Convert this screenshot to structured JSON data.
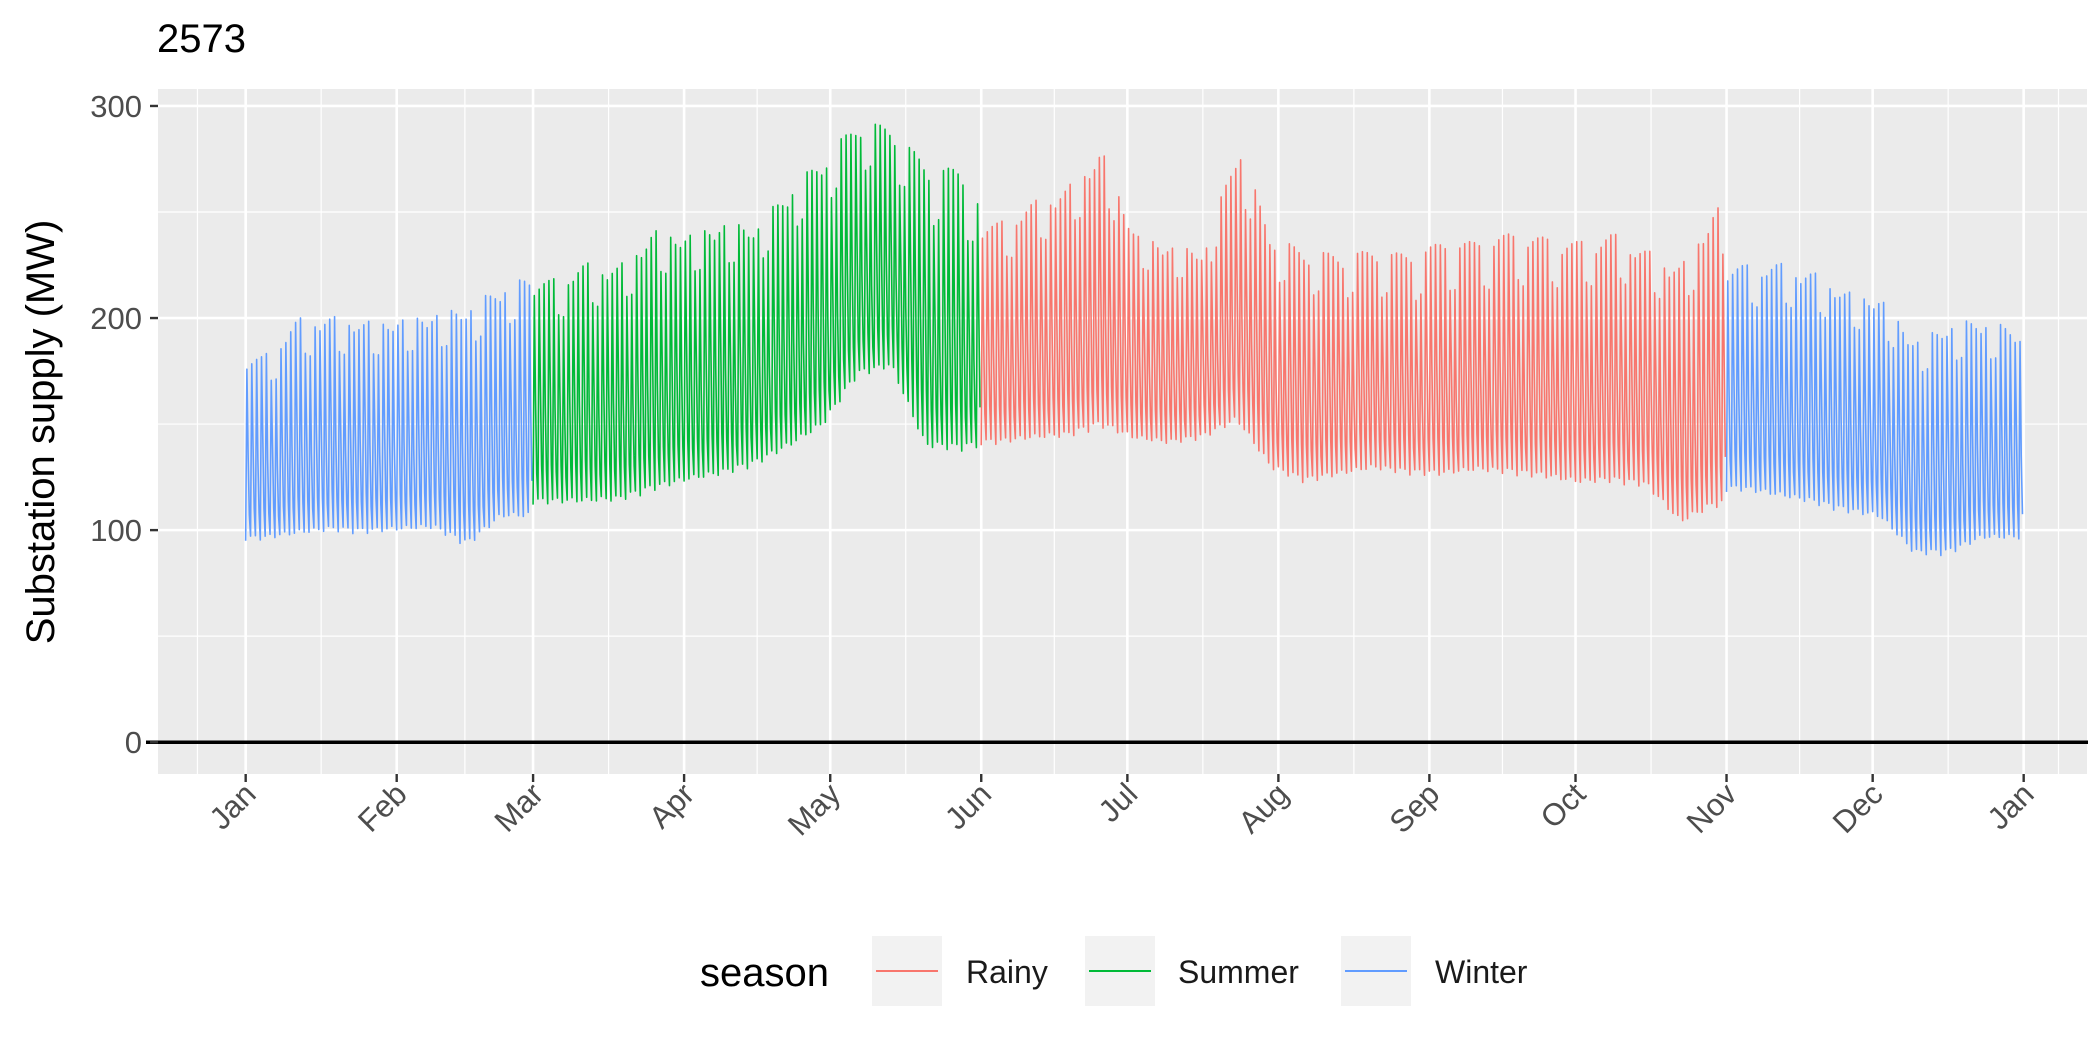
{
  "chart_data": {
    "type": "line",
    "title": "2573",
    "xlabel": "",
    "ylabel": "Substation supply (MW)",
    "ylim": [
      -15,
      308
    ],
    "yticks": [
      0,
      100,
      200,
      300
    ],
    "xlim": [
      "2022-12-14",
      "2024-01-14"
    ],
    "xticks": [
      {
        "date": "2023-01-01",
        "label": "Jan"
      },
      {
        "date": "2023-02-01",
        "label": "Feb"
      },
      {
        "date": "2023-03-01",
        "label": "Mar"
      },
      {
        "date": "2023-04-01",
        "label": "Apr"
      },
      {
        "date": "2023-05-01",
        "label": "May"
      },
      {
        "date": "2023-06-01",
        "label": "Jun"
      },
      {
        "date": "2023-07-01",
        "label": "Jul"
      },
      {
        "date": "2023-08-01",
        "label": "Aug"
      },
      {
        "date": "2023-09-01",
        "label": "Sep"
      },
      {
        "date": "2023-10-01",
        "label": "Oct"
      },
      {
        "date": "2023-11-01",
        "label": "Nov"
      },
      {
        "date": "2023-12-01",
        "label": "Dec"
      },
      {
        "date": "2024-01-01",
        "label": "Jan"
      }
    ],
    "hline": 0,
    "grid": true,
    "legend_title": "season",
    "legend_position": "bottom",
    "series": [
      {
        "name": "Rainy",
        "color": "#F8766D",
        "start": "2023-06-01",
        "end": "2023-10-31",
        "weekly_peak_min": [
          {
            "week_of": "2023-06-01",
            "peak": 245,
            "min": 140
          },
          {
            "week_of": "2023-06-08",
            "peak": 255,
            "min": 142
          },
          {
            "week_of": "2023-06-15",
            "peak": 262,
            "min": 143
          },
          {
            "week_of": "2023-06-22",
            "peak": 280,
            "min": 148
          },
          {
            "week_of": "2023-06-29",
            "peak": 240,
            "min": 142
          },
          {
            "week_of": "2023-07-06",
            "peak": 235,
            "min": 140
          },
          {
            "week_of": "2023-07-13",
            "peak": 232,
            "min": 143
          },
          {
            "week_of": "2023-07-20",
            "peak": 283,
            "min": 150
          },
          {
            "week_of": "2023-07-27",
            "peak": 238,
            "min": 128
          },
          {
            "week_of": "2023-08-03",
            "peak": 232,
            "min": 122
          },
          {
            "week_of": "2023-08-10",
            "peak": 230,
            "min": 125
          },
          {
            "week_of": "2023-08-17",
            "peak": 232,
            "min": 128
          },
          {
            "week_of": "2023-08-24",
            "peak": 230,
            "min": 126
          },
          {
            "week_of": "2023-08-31",
            "peak": 236,
            "min": 125
          },
          {
            "week_of": "2023-09-07",
            "peak": 236,
            "min": 127
          },
          {
            "week_of": "2023-09-14",
            "peak": 240,
            "min": 126
          },
          {
            "week_of": "2023-09-21",
            "peak": 238,
            "min": 124
          },
          {
            "week_of": "2023-09-28",
            "peak": 236,
            "min": 121
          },
          {
            "week_of": "2023-10-05",
            "peak": 240,
            "min": 122
          },
          {
            "week_of": "2023-10-12",
            "peak": 232,
            "min": 120
          },
          {
            "week_of": "2023-10-19",
            "peak": 225,
            "min": 102
          },
          {
            "week_of": "2023-10-26",
            "peak": 253,
            "min": 110
          }
        ]
      },
      {
        "name": "Summer",
        "color": "#00BA38",
        "start": "2023-03-01",
        "end": "2023-05-31",
        "weekly_peak_min": [
          {
            "week_of": "2023-03-01",
            "peak": 218,
            "min": 112
          },
          {
            "week_of": "2023-03-08",
            "peak": 226,
            "min": 112
          },
          {
            "week_of": "2023-03-15",
            "peak": 225,
            "min": 113
          },
          {
            "week_of": "2023-03-22",
            "peak": 242,
            "min": 118
          },
          {
            "week_of": "2023-03-29",
            "peak": 240,
            "min": 122
          },
          {
            "week_of": "2023-04-05",
            "peak": 246,
            "min": 125
          },
          {
            "week_of": "2023-04-12",
            "peak": 244,
            "min": 130
          },
          {
            "week_of": "2023-04-19",
            "peak": 262,
            "min": 138
          },
          {
            "week_of": "2023-04-26",
            "peak": 276,
            "min": 148
          },
          {
            "week_of": "2023-05-03",
            "peak": 293,
            "min": 172
          },
          {
            "week_of": "2023-05-10",
            "peak": 290,
            "min": 176
          },
          {
            "week_of": "2023-05-17",
            "peak": 272,
            "min": 138
          },
          {
            "week_of": "2023-05-24",
            "peak": 270,
            "min": 137
          },
          {
            "week_of": "2023-05-31",
            "peak": 242,
            "min": 140
          }
        ]
      },
      {
        "name": "Winter",
        "color": "#619CFF",
        "segments": [
          {
            "start": "2023-01-01",
            "end": "2023-02-28",
            "weekly_peak_min": [
              {
                "week_of": "2023-01-01",
                "peak": 182,
                "min": 95
              },
              {
                "week_of": "2023-01-08",
                "peak": 200,
                "min": 97
              },
              {
                "week_of": "2023-01-15",
                "peak": 201,
                "min": 99
              },
              {
                "week_of": "2023-01-22",
                "peak": 199,
                "min": 98
              },
              {
                "week_of": "2023-01-29",
                "peak": 200,
                "min": 99
              },
              {
                "week_of": "2023-02-05",
                "peak": 203,
                "min": 100
              },
              {
                "week_of": "2023-02-12",
                "peak": 206,
                "min": 92
              },
              {
                "week_of": "2023-02-19",
                "peak": 216,
                "min": 105
              },
              {
                "week_of": "2023-02-26",
                "peak": 220,
                "min": 105
              }
            ]
          },
          {
            "start": "2023-11-01",
            "end": "2023-12-31",
            "weekly_peak_min": [
              {
                "week_of": "2023-11-01",
                "peak": 225,
                "min": 118
              },
              {
                "week_of": "2023-11-08",
                "peak": 226,
                "min": 115
              },
              {
                "week_of": "2023-11-15",
                "peak": 222,
                "min": 112
              },
              {
                "week_of": "2023-11-22",
                "peak": 213,
                "min": 108
              },
              {
                "week_of": "2023-11-29",
                "peak": 210,
                "min": 105
              },
              {
                "week_of": "2023-12-06",
                "peak": 190,
                "min": 88
              },
              {
                "week_of": "2023-12-13",
                "peak": 198,
                "min": 88
              },
              {
                "week_of": "2023-12-20",
                "peak": 200,
                "min": 95
              },
              {
                "week_of": "2023-12-27",
                "peak": 194,
                "min": 95
              }
            ]
          }
        ]
      }
    ]
  }
}
